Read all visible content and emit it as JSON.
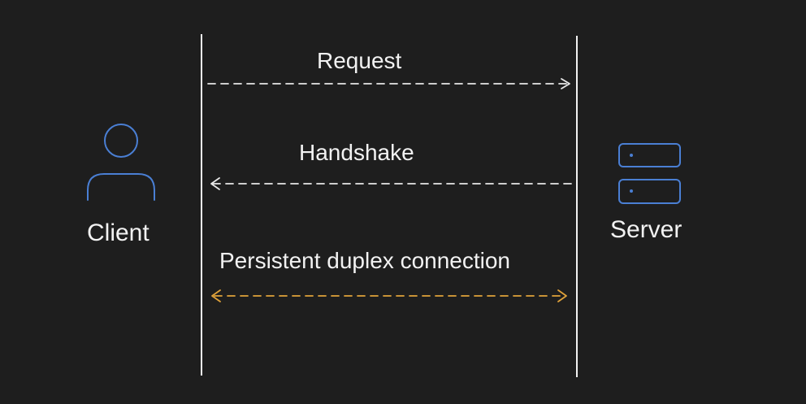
{
  "actors": {
    "client": {
      "label": "Client",
      "icon": "user-icon"
    },
    "server": {
      "label": "Server",
      "icon": "server-icon"
    }
  },
  "messages": [
    {
      "label": "Request",
      "direction": "client-to-server",
      "color": "#e8e8e8"
    },
    {
      "label": "Handshake",
      "direction": "server-to-client",
      "color": "#e8e8e8"
    },
    {
      "label": "Persistent duplex connection",
      "direction": "bidirectional",
      "color": "#e0a23a"
    }
  ],
  "colors": {
    "background": "#1e1e1e",
    "lifeline": "#f2f2f2",
    "icon": "#4a7fd4",
    "duplex": "#e0a23a",
    "text": "#f2f2f2"
  }
}
